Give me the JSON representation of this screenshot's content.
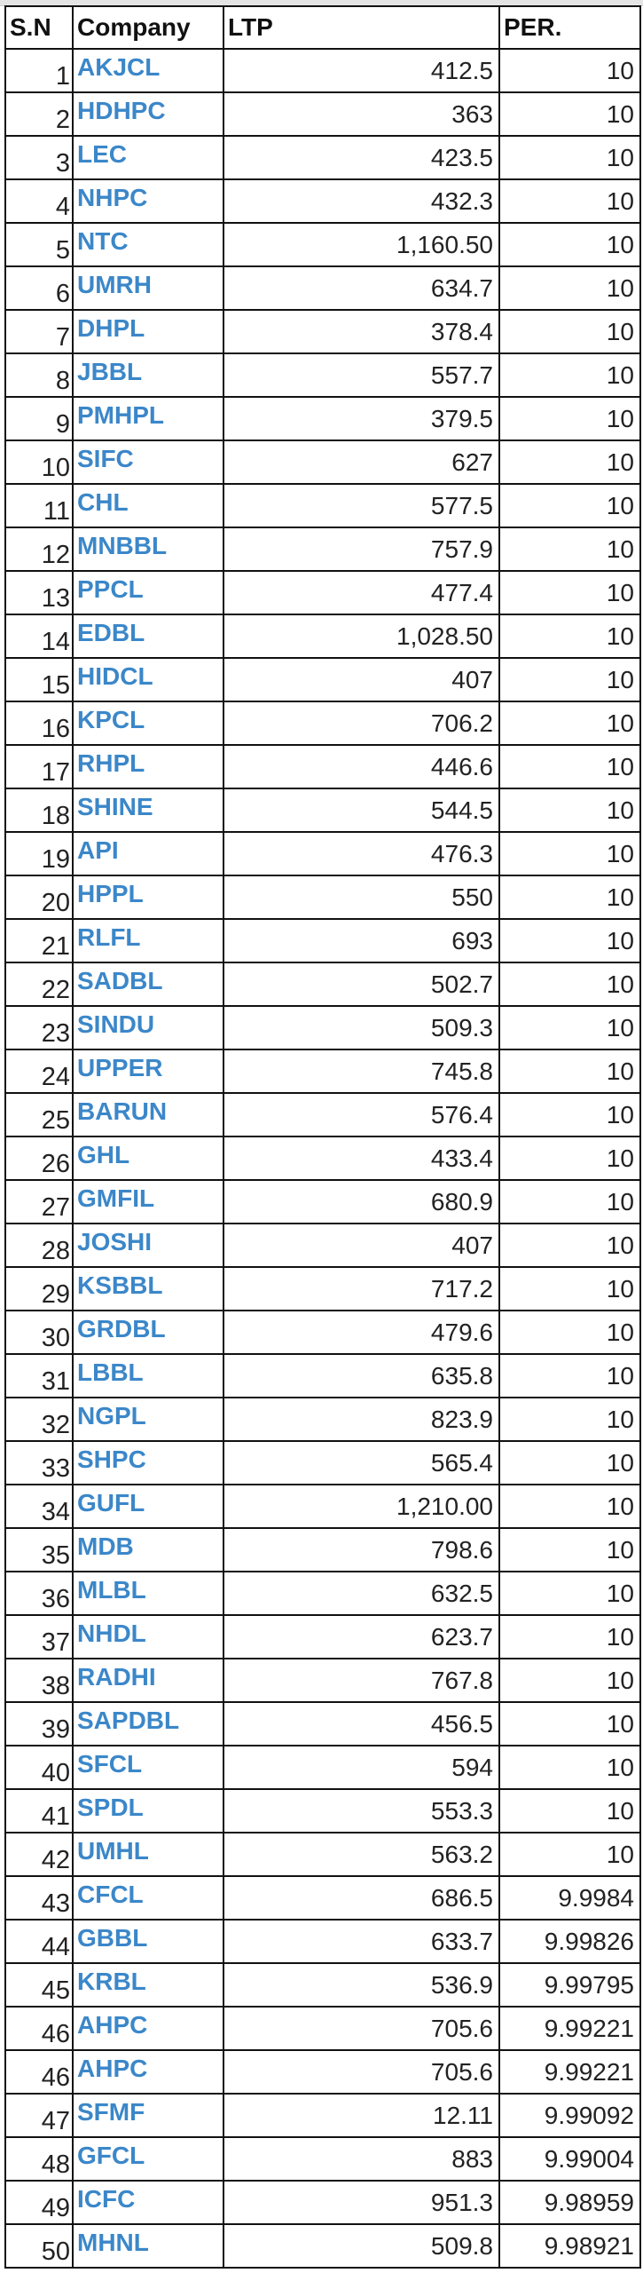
{
  "accent_color": "#3b87c9",
  "headers": {
    "sn": "S.N",
    "company": "Company",
    "ltp": "LTP",
    "per": "PER."
  },
  "rows": [
    {
      "sn": "1",
      "company": "AKJCL",
      "ltp": "412.5",
      "per": "10"
    },
    {
      "sn": "2",
      "company": "HDHPC",
      "ltp": "363",
      "per": "10"
    },
    {
      "sn": "3",
      "company": "LEC",
      "ltp": "423.5",
      "per": "10"
    },
    {
      "sn": "4",
      "company": "NHPC",
      "ltp": "432.3",
      "per": "10"
    },
    {
      "sn": "5",
      "company": "NTC",
      "ltp": "1,160.50",
      "per": "10"
    },
    {
      "sn": "6",
      "company": "UMRH",
      "ltp": "634.7",
      "per": "10"
    },
    {
      "sn": "7",
      "company": "DHPL",
      "ltp": "378.4",
      "per": "10"
    },
    {
      "sn": "8",
      "company": "JBBL",
      "ltp": "557.7",
      "per": "10"
    },
    {
      "sn": "9",
      "company": "PMHPL",
      "ltp": "379.5",
      "per": "10"
    },
    {
      "sn": "10",
      "company": "SIFC",
      "ltp": "627",
      "per": "10"
    },
    {
      "sn": "11",
      "company": "CHL",
      "ltp": "577.5",
      "per": "10"
    },
    {
      "sn": "12",
      "company": "MNBBL",
      "ltp": "757.9",
      "per": "10"
    },
    {
      "sn": "13",
      "company": "PPCL",
      "ltp": "477.4",
      "per": "10"
    },
    {
      "sn": "14",
      "company": "EDBL",
      "ltp": "1,028.50",
      "per": "10"
    },
    {
      "sn": "15",
      "company": "HIDCL",
      "ltp": "407",
      "per": "10"
    },
    {
      "sn": "16",
      "company": "KPCL",
      "ltp": "706.2",
      "per": "10"
    },
    {
      "sn": "17",
      "company": "RHPL",
      "ltp": "446.6",
      "per": "10"
    },
    {
      "sn": "18",
      "company": "SHINE",
      "ltp": "544.5",
      "per": "10"
    },
    {
      "sn": "19",
      "company": "API",
      "ltp": "476.3",
      "per": "10"
    },
    {
      "sn": "20",
      "company": "HPPL",
      "ltp": "550",
      "per": "10"
    },
    {
      "sn": "21",
      "company": "RLFL",
      "ltp": "693",
      "per": "10"
    },
    {
      "sn": "22",
      "company": "SADBL",
      "ltp": "502.7",
      "per": "10"
    },
    {
      "sn": "23",
      "company": "SINDU",
      "ltp": "509.3",
      "per": "10"
    },
    {
      "sn": "24",
      "company": "UPPER",
      "ltp": "745.8",
      "per": "10"
    },
    {
      "sn": "25",
      "company": "BARUN",
      "ltp": "576.4",
      "per": "10"
    },
    {
      "sn": "26",
      "company": "GHL",
      "ltp": "433.4",
      "per": "10"
    },
    {
      "sn": "27",
      "company": "GMFIL",
      "ltp": "680.9",
      "per": "10"
    },
    {
      "sn": "28",
      "company": "JOSHI",
      "ltp": "407",
      "per": "10"
    },
    {
      "sn": "29",
      "company": "KSBBL",
      "ltp": "717.2",
      "per": "10"
    },
    {
      "sn": "30",
      "company": "GRDBL",
      "ltp": "479.6",
      "per": "10"
    },
    {
      "sn": "31",
      "company": "LBBL",
      "ltp": "635.8",
      "per": "10"
    },
    {
      "sn": "32",
      "company": "NGPL",
      "ltp": "823.9",
      "per": "10"
    },
    {
      "sn": "33",
      "company": "SHPC",
      "ltp": "565.4",
      "per": "10"
    },
    {
      "sn": "34",
      "company": "GUFL",
      "ltp": "1,210.00",
      "per": "10"
    },
    {
      "sn": "35",
      "company": "MDB",
      "ltp": "798.6",
      "per": "10"
    },
    {
      "sn": "36",
      "company": "MLBL",
      "ltp": "632.5",
      "per": "10"
    },
    {
      "sn": "37",
      "company": "NHDL",
      "ltp": "623.7",
      "per": "10"
    },
    {
      "sn": "38",
      "company": "RADHI",
      "ltp": "767.8",
      "per": "10"
    },
    {
      "sn": "39",
      "company": "SAPDBL",
      "ltp": "456.5",
      "per": "10"
    },
    {
      "sn": "40",
      "company": "SFCL",
      "ltp": "594",
      "per": "10"
    },
    {
      "sn": "41",
      "company": "SPDL",
      "ltp": "553.3",
      "per": "10"
    },
    {
      "sn": "42",
      "company": "UMHL",
      "ltp": "563.2",
      "per": "10"
    },
    {
      "sn": "43",
      "company": "CFCL",
      "ltp": "686.5",
      "per": "9.9984"
    },
    {
      "sn": "44",
      "company": "GBBL",
      "ltp": "633.7",
      "per": "9.99826"
    },
    {
      "sn": "45",
      "company": "KRBL",
      "ltp": "536.9",
      "per": "9.99795"
    },
    {
      "sn": "46",
      "company": "AHPC",
      "ltp": "705.6",
      "per": "9.99221"
    },
    {
      "sn": "46",
      "company": "AHPC",
      "ltp": "705.6",
      "per": "9.99221"
    },
    {
      "sn": "47",
      "company": "SFMF",
      "ltp": "12.11",
      "per": "9.99092"
    },
    {
      "sn": "48",
      "company": "GFCL",
      "ltp": "883",
      "per": "9.99004"
    },
    {
      "sn": "49",
      "company": "ICFC",
      "ltp": "951.3",
      "per": "9.98959"
    },
    {
      "sn": "50",
      "company": "MHNL",
      "ltp": "509.8",
      "per": "9.98921"
    }
  ]
}
